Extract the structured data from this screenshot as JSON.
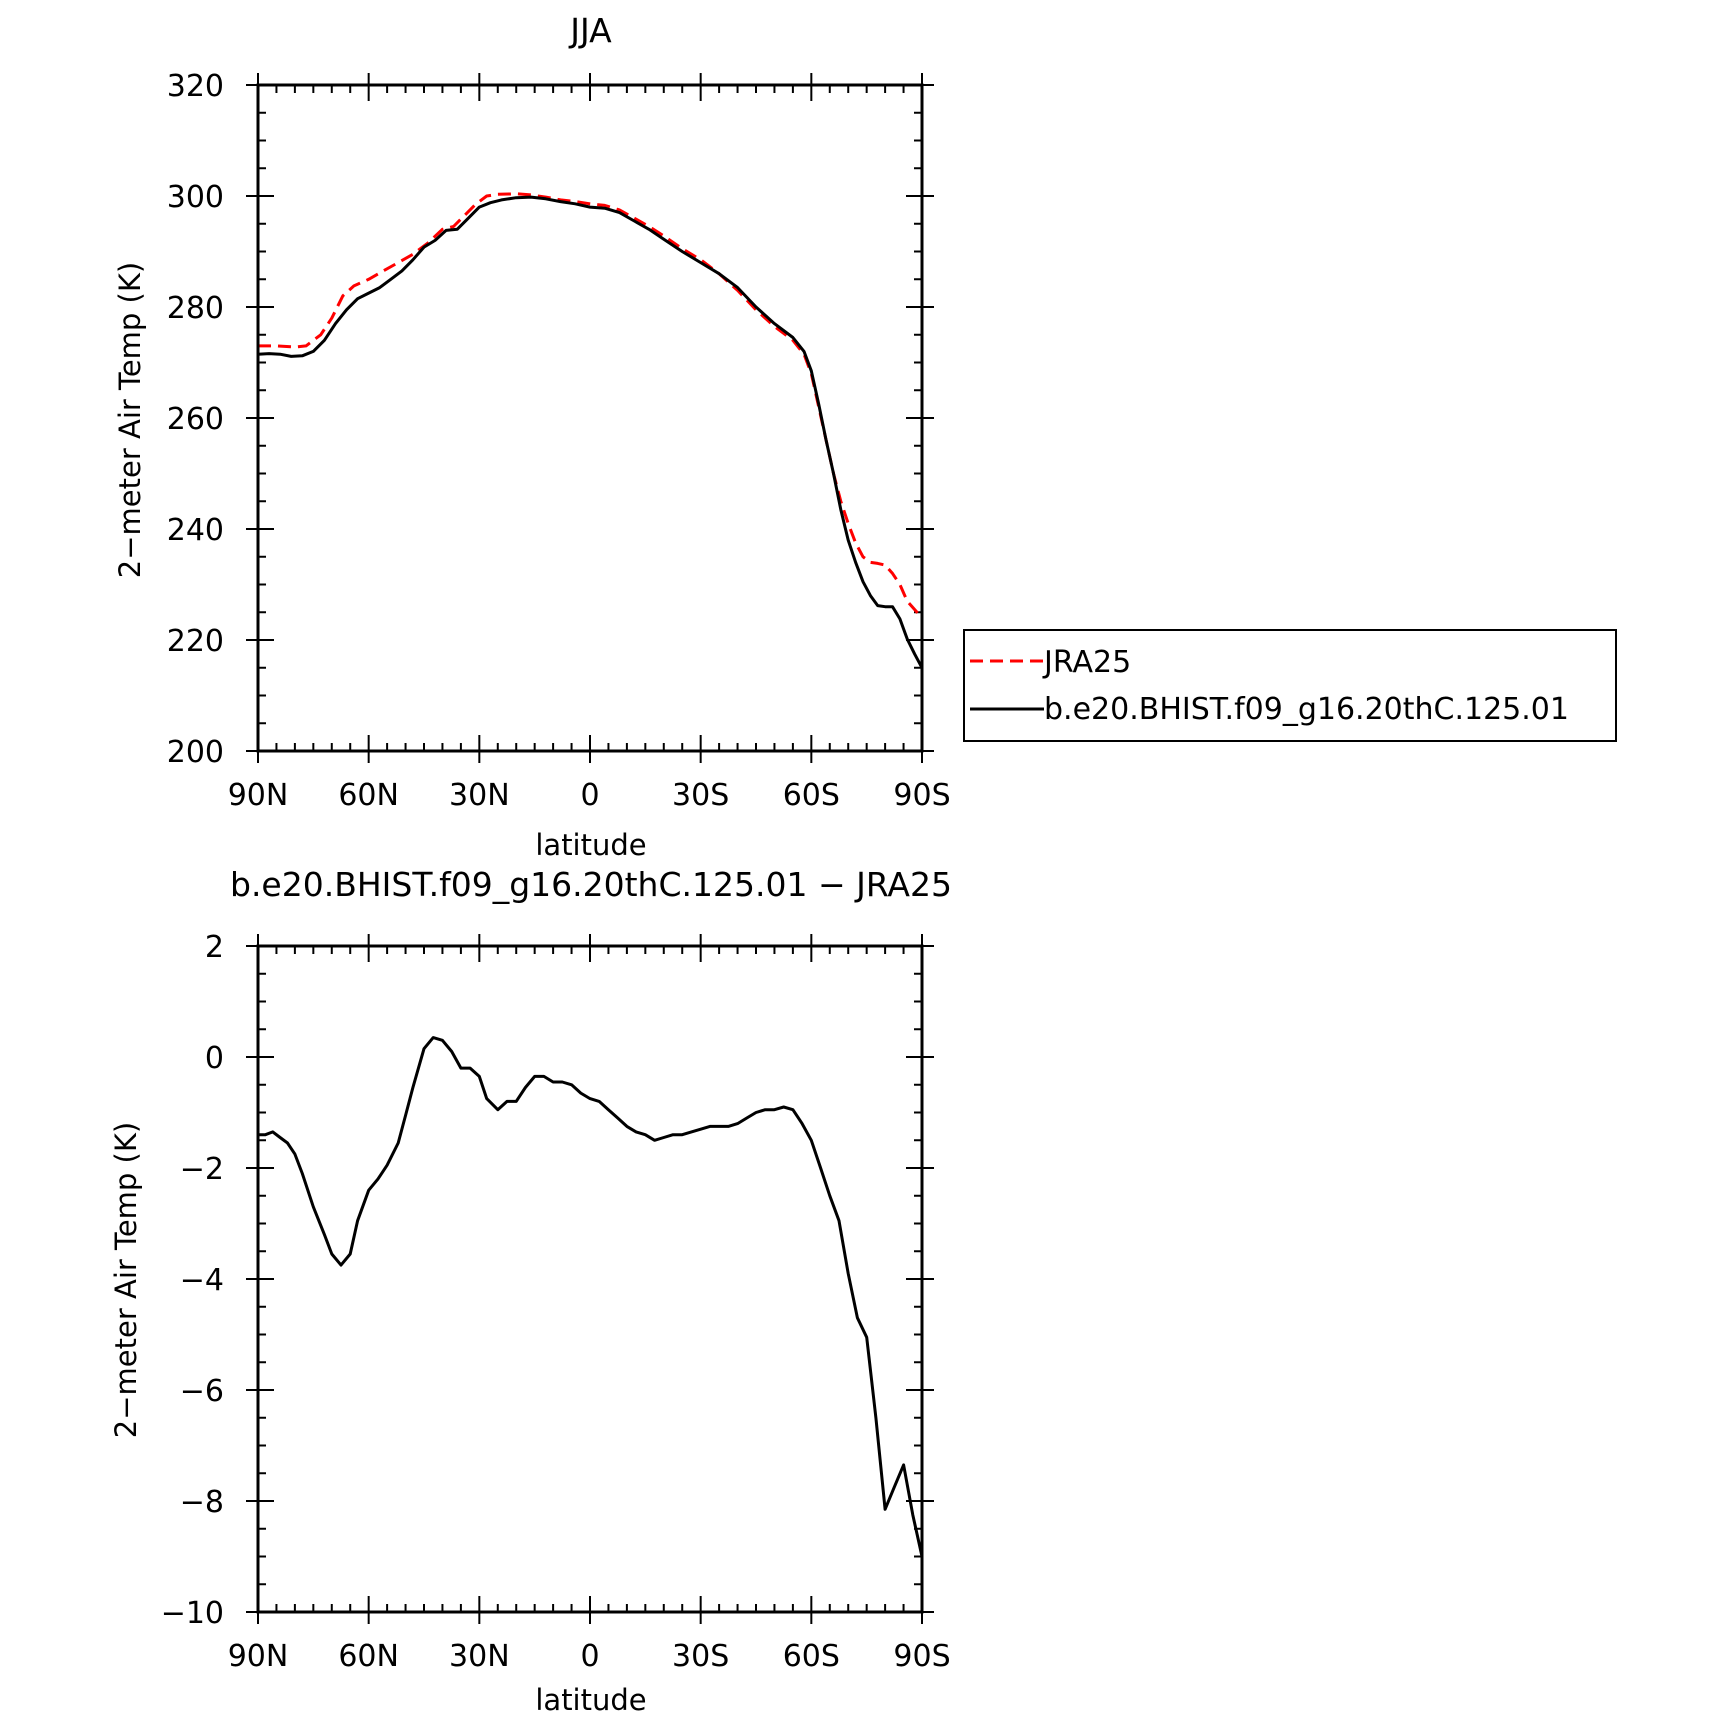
{
  "chart_data": [
    {
      "type": "line",
      "title": "JJA",
      "xlabel": "latitude",
      "ylabel": "2−meter Air Temp (K)",
      "xlim": [
        90,
        -90
      ],
      "ylim": [
        200,
        320
      ],
      "x_ticks": [
        90,
        60,
        30,
        0,
        -30,
        -60,
        -90
      ],
      "x_tick_labels": [
        "90N",
        "60N",
        "30N",
        "0",
        "30S",
        "60S",
        "90S"
      ],
      "y_ticks": [
        200,
        220,
        240,
        260,
        280,
        300,
        320
      ],
      "y_tick_labels": [
        "200",
        "220",
        "240",
        "260",
        "280",
        "300",
        "320"
      ],
      "grid": false,
      "legend_position": "right, outside plot",
      "series": [
        {
          "name": "JRA25",
          "color": "#ff0000",
          "dash": "dashed",
          "x": [
            90,
            85,
            80,
            77,
            73,
            70,
            67,
            64,
            60,
            56,
            52,
            48,
            44,
            40,
            37,
            34,
            31,
            28,
            25,
            20,
            16,
            12,
            8,
            4,
            0,
            -4,
            -8,
            -12,
            -16,
            -20,
            -25,
            -30,
            -35,
            -40,
            -45,
            -50,
            -55,
            -58,
            -60,
            -62,
            -64,
            -66,
            -68,
            -70,
            -72,
            -74,
            -76,
            -78,
            -80,
            -82,
            -84,
            -86,
            -88,
            -90
          ],
          "y": [
            273,
            273,
            272.8,
            273,
            275,
            278,
            282,
            283.8,
            285,
            286.5,
            288,
            289.5,
            291.5,
            294,
            294.5,
            296.5,
            298.5,
            300,
            300.3,
            300.4,
            300.2,
            299.8,
            299.3,
            299,
            298.6,
            298.3,
            297.5,
            296,
            294.5,
            292.8,
            290.5,
            288.5,
            286,
            283,
            279.5,
            276.5,
            274,
            271.5,
            268,
            262,
            256,
            250,
            245,
            241,
            237.5,
            235,
            234,
            233.8,
            233.5,
            232,
            230,
            227,
            225.5,
            224
          ]
        },
        {
          "name": "b.e20.BHIST.f09_g16.20thC.125.01",
          "color": "#000000",
          "dash": "solid",
          "x": [
            90,
            87,
            84,
            81,
            78,
            75,
            72,
            69,
            66,
            63,
            60,
            57,
            54,
            51,
            48,
            45,
            42,
            39,
            36,
            33,
            30,
            27,
            24,
            20,
            16,
            12,
            8,
            4,
            0,
            -4,
            -8,
            -12,
            -16,
            -20,
            -25,
            -30,
            -35,
            -40,
            -45,
            -50,
            -55,
            -58,
            -60,
            -62,
            -64,
            -66,
            -68,
            -70,
            -72,
            -74,
            -76,
            -78,
            -80,
            -82,
            -84,
            -86,
            -88,
            -90
          ],
          "y": [
            271.5,
            271.6,
            271.5,
            271.1,
            271.2,
            272,
            274,
            277,
            279.5,
            281.5,
            282.5,
            283.5,
            285,
            286.5,
            288.5,
            290.8,
            292,
            293.8,
            294,
            296,
            298,
            298.8,
            299.3,
            299.7,
            299.8,
            299.5,
            299,
            298.6,
            298,
            297.8,
            297,
            295.5,
            294,
            292.2,
            290,
            288,
            286,
            283.5,
            280,
            277,
            274.5,
            272,
            268.5,
            262.5,
            256,
            250,
            243.5,
            238,
            234,
            230.5,
            228,
            226.2,
            226,
            226,
            223.8,
            220.2,
            217.5,
            215
          ]
        }
      ]
    },
    {
      "type": "line",
      "title": "b.e20.BHIST.f09_g16.20thC.125.01 − JRA25",
      "xlabel": "latitude",
      "ylabel": "2−meter Air Temp (K)",
      "xlim": [
        90,
        -90
      ],
      "ylim": [
        -10,
        2
      ],
      "x_ticks": [
        90,
        60,
        30,
        0,
        -30,
        -60,
        -90
      ],
      "x_tick_labels": [
        "90N",
        "60N",
        "30N",
        "0",
        "30S",
        "60S",
        "90S"
      ],
      "y_ticks": [
        2,
        0,
        -2,
        -4,
        -6,
        -8,
        -10
      ],
      "y_tick_labels": [
        "2",
        "0",
        "−2",
        "−4",
        "−6",
        "−8",
        "−10"
      ],
      "grid": false,
      "series": [
        {
          "color": "#000000",
          "dash": "solid",
          "x": [
            90,
            88,
            86,
            84,
            82,
            80,
            78,
            75,
            72,
            70,
            67.5,
            65,
            63,
            60,
            57.5,
            55,
            52,
            50,
            48,
            45,
            42.5,
            40,
            37.5,
            35,
            32.5,
            30,
            28,
            25,
            22.5,
            20,
            17.5,
            15,
            12.5,
            10,
            7.5,
            5,
            2.5,
            0,
            -2.5,
            -5,
            -7.5,
            -10,
            -12.5,
            -15,
            -17.5,
            -20,
            -22.5,
            -25,
            -27.5,
            -30,
            -32.5,
            -35,
            -37.5,
            -40,
            -42.5,
            -45,
            -47.5,
            -50,
            -52.5,
            -55,
            -57.5,
            -60,
            -62.5,
            -65,
            -67.5,
            -70,
            -72.5,
            -75,
            -77.5,
            -80,
            -82.5,
            -85,
            -87.5,
            -90
          ],
          "y": [
            -1.4,
            -1.4,
            -1.35,
            -1.45,
            -1.55,
            -1.75,
            -2.1,
            -2.7,
            -3.2,
            -3.55,
            -3.75,
            -3.55,
            -2.95,
            -2.4,
            -2.2,
            -1.95,
            -1.55,
            -1.05,
            -0.55,
            0.15,
            0.35,
            0.3,
            0.1,
            -0.2,
            -0.2,
            -0.35,
            -0.75,
            -0.95,
            -0.8,
            -0.8,
            -0.55,
            -0.35,
            -0.35,
            -0.45,
            -0.45,
            -0.5,
            -0.65,
            -0.75,
            -0.8,
            -0.95,
            -1.1,
            -1.25,
            -1.35,
            -1.4,
            -1.5,
            -1.45,
            -1.4,
            -1.4,
            -1.35,
            -1.3,
            -1.25,
            -1.25,
            -1.25,
            -1.2,
            -1.1,
            -1.0,
            -0.95,
            -0.95,
            -0.9,
            -0.95,
            -1.2,
            -1.5,
            -2.0,
            -2.5,
            -2.95,
            -3.9,
            -4.7,
            -5.05,
            -6.5,
            -8.15,
            -7.75,
            -7.35,
            -8.25,
            -9.0
          ]
        }
      ]
    }
  ]
}
